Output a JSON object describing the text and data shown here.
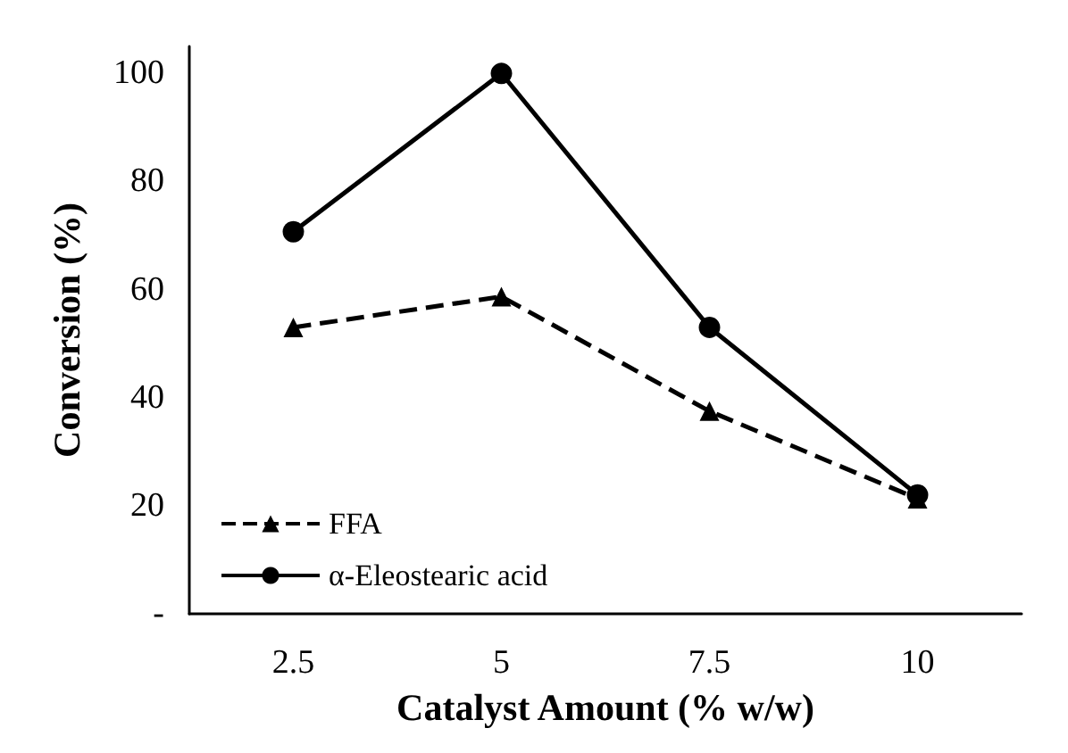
{
  "chart_data": {
    "type": "line",
    "xlabel": "Catalyst Amount (% w/w)",
    "ylabel": "Conversion (%)",
    "categories": [
      "2.5",
      "5",
      "7.5",
      "10"
    ],
    "series": [
      {
        "name": "FFA",
        "color": "#000000",
        "marker": "triangle",
        "line_style": "dashed",
        "values": [
          53,
          58.7,
          37.5,
          21.3
        ]
      },
      {
        "name": "α-Eleostearic acid",
        "color": "#000000",
        "marker": "circle",
        "line_style": "solid",
        "values": [
          70.7,
          100,
          53,
          22
        ]
      }
    ],
    "ylim": [
      0,
      105
    ],
    "yticks": [
      {
        "value": 0,
        "label": "-"
      },
      20,
      40,
      60,
      80,
      100
    ],
    "grid": false,
    "legend": "bottom left"
  }
}
